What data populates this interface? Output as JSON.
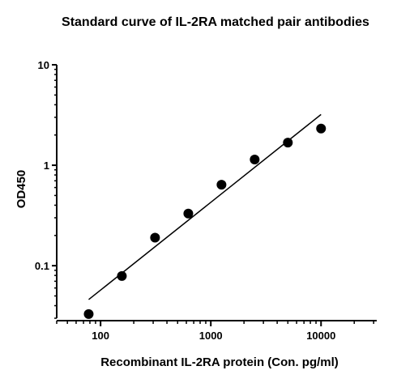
{
  "chart_data": {
    "type": "scatter",
    "title": "Standard curve of IL-2RA matched pair antibodies",
    "xlabel": "Recombinant IL-2RA protein (Con. pg/ml)",
    "ylabel": "OD450",
    "x_scale": "log",
    "y_scale": "log",
    "xlim": [
      40,
      32000
    ],
    "ylim": [
      0.03,
      10
    ],
    "x_ticks": [
      {
        "value": 100,
        "label": "100"
      },
      {
        "value": 1000,
        "label": "1000"
      },
      {
        "value": 10000,
        "label": "10000"
      }
    ],
    "y_ticks": [
      {
        "value": 0.1,
        "label": "0.1"
      },
      {
        "value": 1,
        "label": "1"
      },
      {
        "value": 10,
        "label": "10"
      }
    ],
    "grid": false,
    "colors": {
      "points": "#000000",
      "line": "#000000",
      "axes": "#000000"
    },
    "series": [
      {
        "type": "scatter",
        "x": [
          78,
          156,
          312,
          625,
          1250,
          2500,
          5000,
          10000
        ],
        "y": [
          0.033,
          0.079,
          0.19,
          0.33,
          0.64,
          1.14,
          1.68,
          2.32
        ]
      }
    ],
    "fit_line": {
      "x": [
        78,
        10000
      ],
      "y": [
        0.046,
        3.2
      ]
    }
  }
}
